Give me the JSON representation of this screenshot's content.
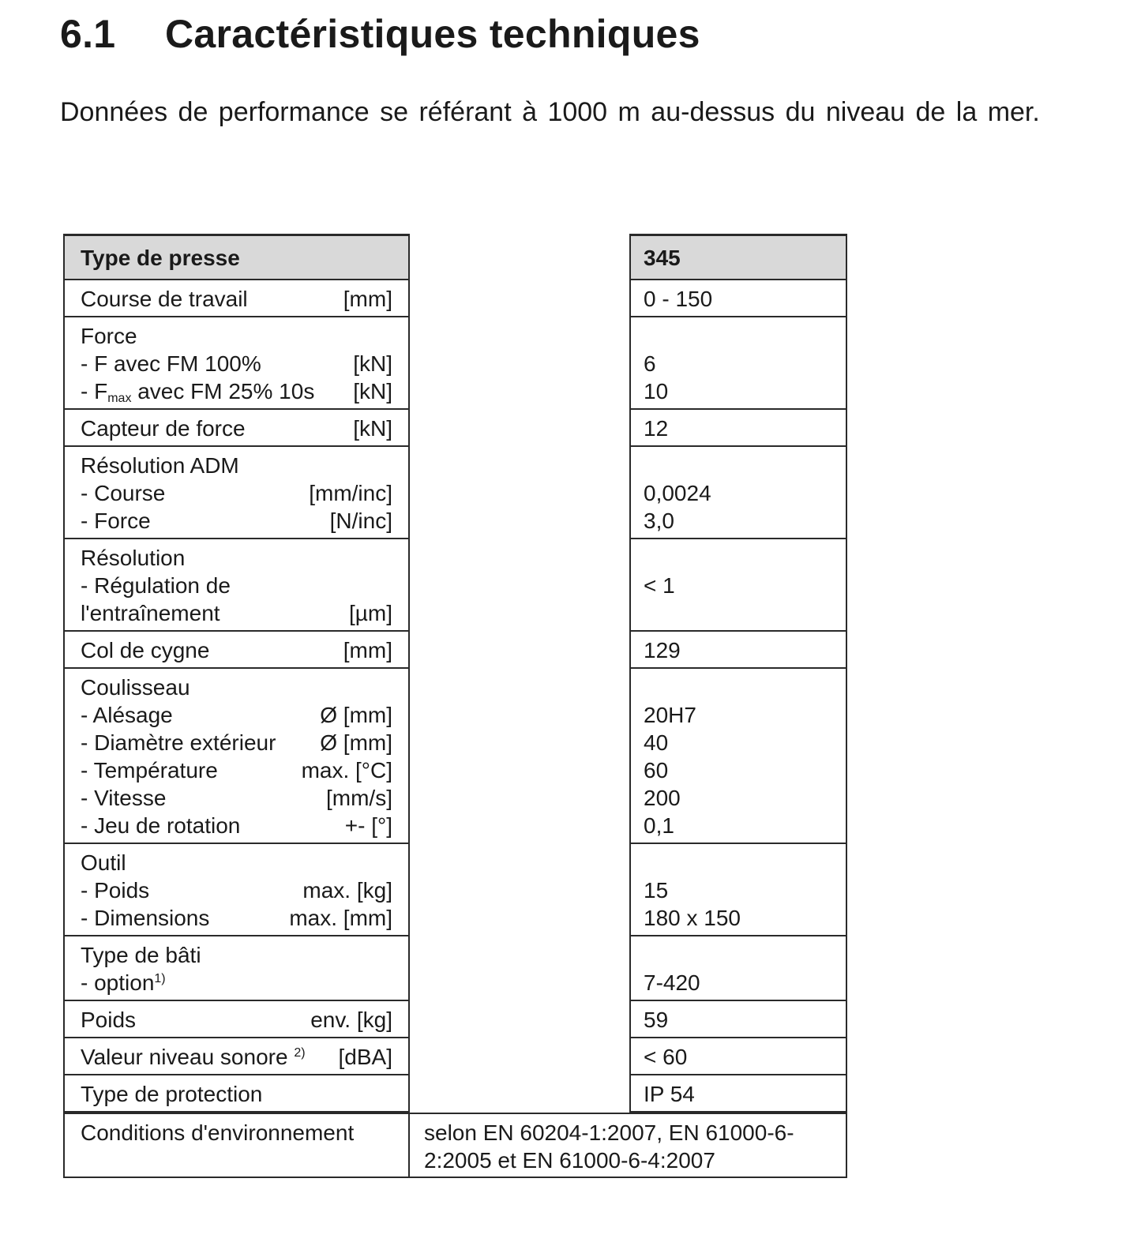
{
  "section": {
    "number": "6.1",
    "title": "Caractéristiques techniques"
  },
  "intro": "Données de performance se référant à 1000 m au-dessus du niveau de la mer.",
  "table": {
    "header": {
      "label": "Type de presse",
      "value": "345"
    },
    "rows": [
      {
        "lines": [
          {
            "label": "Course de travail",
            "unit": "[mm]",
            "value": "0 - 150"
          }
        ]
      },
      {
        "lines": [
          {
            "label": "Force",
            "unit": "",
            "value": ""
          },
          {
            "label": "- F avec FM 100%",
            "unit": "[kN]",
            "value": "6"
          },
          {
            "label": "- F",
            "sub": "max",
            "label_rest": " avec FM 25% 10s",
            "unit": "[kN]",
            "value": "10"
          }
        ]
      },
      {
        "lines": [
          {
            "label": "Capteur de force",
            "unit": "[kN]",
            "value": "12"
          }
        ]
      },
      {
        "lines": [
          {
            "label": "Résolution ADM",
            "unit": "",
            "value": ""
          },
          {
            "label": "- Course",
            "unit": "[mm/inc]",
            "value": "0,0024"
          },
          {
            "label": "- Force",
            "unit": "[N/inc]",
            "value": "3,0"
          }
        ]
      },
      {
        "lines": [
          {
            "label": "Résolution",
            "unit": "",
            "value": ""
          },
          {
            "label": "- Régulation de",
            "unit": "",
            "value": "< 1"
          },
          {
            "label": "l'entraînement",
            "unit": "[µm]",
            "value": ""
          }
        ]
      },
      {
        "lines": [
          {
            "label": "Col de cygne",
            "unit": "[mm]",
            "value": "129"
          }
        ]
      },
      {
        "lines": [
          {
            "label": "Coulisseau",
            "unit": "",
            "value": ""
          },
          {
            "label": "- Alésage",
            "unit": "Ø [mm]",
            "value": "20H7"
          },
          {
            "label": "- Diamètre extérieur",
            "unit": "Ø [mm]",
            "value": "40"
          },
          {
            "label": "- Température",
            "unit": "max. [°C]",
            "value": "60"
          },
          {
            "label": "- Vitesse",
            "unit": "[mm/s]",
            "value": "200"
          },
          {
            "label": "- Jeu de rotation",
            "unit": "+- [°]",
            "value": "0,1"
          }
        ]
      },
      {
        "lines": [
          {
            "label": "Outil",
            "unit": "",
            "value": ""
          },
          {
            "label": "- Poids",
            "unit": "max. [kg]",
            "value": "15"
          },
          {
            "label": "- Dimensions",
            "unit": "max. [mm]",
            "value": "180 x 150"
          }
        ]
      },
      {
        "lines": [
          {
            "label": "Type de bâti",
            "unit": "",
            "value": ""
          },
          {
            "label": "- option",
            "sup": "1)",
            "unit": "",
            "value": "7-420"
          }
        ]
      },
      {
        "lines": [
          {
            "label": "Poids",
            "unit": "env. [kg]",
            "value": "59"
          }
        ]
      },
      {
        "lines": [
          {
            "label": "Valeur niveau sonore ",
            "sup": "2)",
            "unit": "[dBA]",
            "value": "< 60"
          }
        ]
      },
      {
        "lines": [
          {
            "label": "Type de protection",
            "unit": "",
            "value": "IP 54"
          }
        ]
      }
    ],
    "environment": {
      "label": "Conditions d'environnement",
      "value": "selon EN 60204-1:2007, EN 61000-6-2:2005 et EN 61000-6-4:2007"
    }
  }
}
